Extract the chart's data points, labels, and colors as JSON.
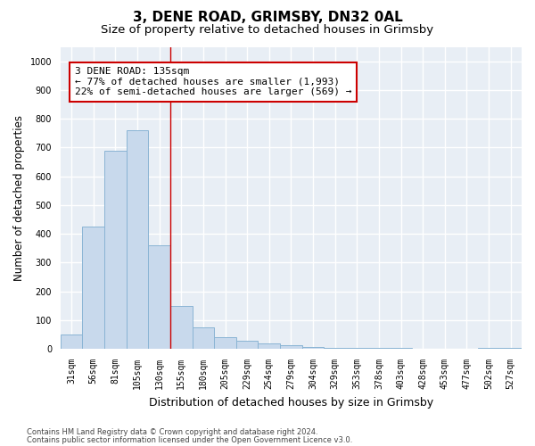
{
  "title1": "3, DENE ROAD, GRIMSBY, DN32 0AL",
  "title2": "Size of property relative to detached houses in Grimsby",
  "xlabel": "Distribution of detached houses by size in Grimsby",
  "ylabel": "Number of detached properties",
  "categories": [
    "31sqm",
    "56sqm",
    "81sqm",
    "105sqm",
    "130sqm",
    "155sqm",
    "180sqm",
    "205sqm",
    "229sqm",
    "254sqm",
    "279sqm",
    "304sqm",
    "329sqm",
    "353sqm",
    "378sqm",
    "403sqm",
    "428sqm",
    "453sqm",
    "477sqm",
    "502sqm",
    "527sqm"
  ],
  "values": [
    50,
    425,
    690,
    760,
    360,
    150,
    75,
    40,
    27,
    20,
    13,
    8,
    5,
    5,
    3,
    3,
    2,
    1,
    1,
    5,
    5
  ],
  "bar_color": "#c8d9ec",
  "bar_edge_color": "#8ab4d4",
  "bar_linewidth": 0.7,
  "vline_color": "#cc0000",
  "annotation_text": "3 DENE ROAD: 135sqm\n← 77% of detached houses are smaller (1,993)\n22% of semi-detached houses are larger (569) →",
  "annotation_box_color": "#ffffff",
  "annotation_box_edge": "#cc0000",
  "ylim": [
    0,
    1050
  ],
  "yticks": [
    0,
    100,
    200,
    300,
    400,
    500,
    600,
    700,
    800,
    900,
    1000
  ],
  "footer1": "Contains HM Land Registry data © Crown copyright and database right 2024.",
  "footer2": "Contains public sector information licensed under the Open Government Licence v3.0.",
  "bg_color": "#ffffff",
  "plot_bg_color": "#e8eef5",
  "grid_color": "#ffffff",
  "title_fontsize": 11,
  "subtitle_fontsize": 9.5,
  "tick_fontsize": 7,
  "ylabel_fontsize": 8.5,
  "xlabel_fontsize": 9,
  "footer_fontsize": 6,
  "annotation_fontsize": 8
}
